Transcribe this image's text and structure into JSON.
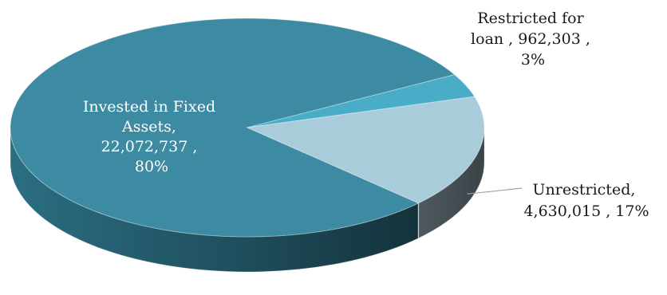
{
  "chart_data": {
    "type": "pie",
    "style": "3d",
    "title": "",
    "slices": [
      {
        "label_lines": [
          "Invested in Fixed",
          "Assets,",
          "22,072,737 ,",
          "80%"
        ],
        "category": "Invested in Fixed Assets",
        "value": 22072737,
        "percent_label": "80%",
        "color": "#3d8aa3"
      },
      {
        "label_lines": [
          "Restricted for",
          "loan ,  962,303 ,",
          "3%"
        ],
        "category": "Restricted for loan",
        "value": 962303,
        "percent_label": "3%",
        "color": "#4aadc8"
      },
      {
        "label_lines": [
          "Unrestricted,",
          "4,630,015 , 17%"
        ],
        "category": "Unrestricted",
        "value": 4630015,
        "percent_label": "17%",
        "color": "#a8ccd9"
      }
    ]
  }
}
